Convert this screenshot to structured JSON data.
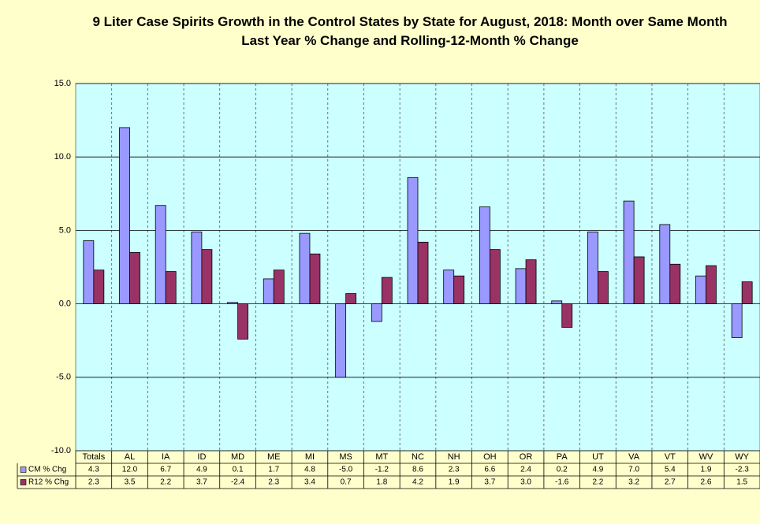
{
  "chart_data": {
    "type": "bar",
    "title": "9 Liter Case Spirits Growth in the Control States by State for August, 2018: Month over Same Month Last Year % Change and Rolling-12-Month % Change",
    "categories": [
      "Totals",
      "AL",
      "IA",
      "ID",
      "MD",
      "ME",
      "MI",
      "MS",
      "MT",
      "NC",
      "NH",
      "OH",
      "OR",
      "PA",
      "UT",
      "VA",
      "VT",
      "WV",
      "WY"
    ],
    "series": [
      {
        "name": "CM % Chg",
        "color": "#9999ff",
        "values": [
          4.3,
          12.0,
          6.7,
          4.9,
          0.1,
          1.7,
          4.8,
          -5.0,
          -1.2,
          8.6,
          2.3,
          6.6,
          2.4,
          0.2,
          4.9,
          7.0,
          5.4,
          1.9,
          -2.3
        ],
        "value_labels": [
          "4.3",
          "12.0",
          "6.7",
          "4.9",
          "0.1",
          "1.7",
          "4.8",
          "-5.0",
          "-1.2",
          "8.6",
          "2.3",
          "6.6",
          "2.4",
          "0.2",
          "4.9",
          "7.0",
          "5.4",
          "1.9",
          "-2.3"
        ]
      },
      {
        "name": "R12 % Chg",
        "color": "#993366",
        "values": [
          2.3,
          3.5,
          2.2,
          3.7,
          -2.4,
          2.3,
          3.4,
          0.7,
          1.8,
          4.2,
          1.9,
          3.7,
          3.0,
          -1.6,
          2.2,
          3.2,
          2.7,
          2.6,
          1.5
        ],
        "value_labels": [
          "2.3",
          "3.5",
          "2.2",
          "3.7",
          "-2.4",
          "2.3",
          "3.4",
          "0.7",
          "1.8",
          "4.2",
          "1.9",
          "3.7",
          "3.0",
          "-1.6",
          "2.2",
          "3.2",
          "2.7",
          "2.6",
          "1.5"
        ]
      }
    ],
    "ylim": [
      -10,
      15
    ],
    "yticks": [
      {
        "value": -10,
        "label": "-10.0"
      },
      {
        "value": -5,
        "label": "-5.0"
      },
      {
        "value": 0,
        "label": "0.0"
      },
      {
        "value": 5,
        "label": "5.0"
      },
      {
        "value": 10,
        "label": "10.0"
      },
      {
        "value": 15,
        "label": "15.0"
      }
    ],
    "grid": true
  }
}
